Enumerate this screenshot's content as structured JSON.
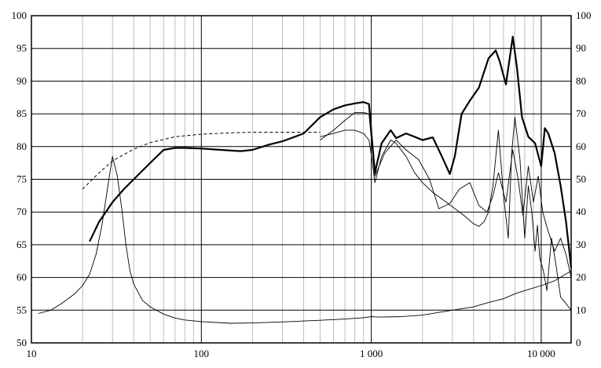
{
  "chart_data": {
    "type": "line",
    "title": "",
    "xlabel": "",
    "ylabel": "",
    "ylabel_right": "",
    "x_scale": "log",
    "xlim": [
      10,
      15000
    ],
    "ylim": [
      50,
      100
    ],
    "ylim_right": [
      0,
      100
    ],
    "grid": true,
    "legend": "none",
    "x_ticks": [
      {
        "value": 10,
        "label": "10"
      },
      {
        "value": 100,
        "label": "100"
      },
      {
        "value": 1000,
        "label": "1 000"
      },
      {
        "value": 10000,
        "label": "10 000"
      }
    ],
    "y_ticks": [
      50,
      55,
      60,
      65,
      70,
      75,
      80,
      85,
      90,
      95,
      100
    ],
    "y_ticks_right": [
      0,
      10,
      20,
      30,
      40,
      50,
      60,
      70,
      80,
      90,
      100
    ],
    "series": [
      {
        "axis": "left",
        "style": "thick",
        "color": "#000000",
        "x": [
          22,
          25,
          30,
          35,
          40,
          50,
          60,
          70,
          80,
          100,
          130,
          170,
          200,
          250,
          300,
          400,
          500,
          600,
          700,
          800,
          900,
          970,
          1010,
          1050,
          1150,
          1300,
          1400,
          1600,
          1800,
          2000,
          2300,
          2600,
          2900,
          3100,
          3400,
          3800,
          4300,
          4900,
          5400,
          5700,
          6200,
          6800,
          7200,
          7700,
          8400,
          9200,
          10000,
          10500,
          11000,
          12000,
          13000,
          14000,
          15000
        ],
        "y": [
          65.5,
          68.5,
          71.5,
          73.5,
          75,
          77.5,
          79.5,
          79.8,
          79.8,
          79.7,
          79.5,
          79.3,
          79.5,
          80.3,
          80.8,
          82,
          84.5,
          85.7,
          86.3,
          86.6,
          86.8,
          86.5,
          81,
          76,
          80.5,
          82.5,
          81.3,
          82,
          81.5,
          81,
          81.4,
          78.5,
          75.8,
          78.5,
          85,
          87,
          89,
          93.5,
          94.7,
          93,
          89.5,
          96.8,
          92,
          84.5,
          81.5,
          80.5,
          77,
          82.8,
          82,
          79,
          74,
          68.5,
          61.5
        ]
      },
      {
        "axis": "left",
        "style": "dashed",
        "color": "#000000",
        "x": [
          20,
          25,
          30,
          40,
          50,
          70,
          100,
          150,
          200,
          300,
          400,
          500
        ],
        "y": [
          73.5,
          76,
          77.8,
          79.6,
          80.6,
          81.5,
          81.9,
          82.1,
          82.2,
          82.2,
          82.2,
          82.2
        ]
      },
      {
        "axis": "left",
        "style": "thin",
        "color": "#000000",
        "x": [
          500,
          600,
          700,
          800,
          900,
          970,
          1010,
          1050,
          1200,
          1400,
          1600,
          1900,
          2200,
          2500,
          2900,
          3300,
          3800,
          4300,
          4800,
          5200,
          5600,
          6200,
          6800,
          7300,
          7800,
          8400,
          9000,
          9600,
          10200,
          11000,
          12000,
          13000,
          14000,
          15000
        ],
        "y": [
          81,
          82.5,
          84,
          85.2,
          85.2,
          85,
          80,
          75.5,
          79,
          81,
          79.5,
          78,
          75,
          70.5,
          71.3,
          73.5,
          74.5,
          71,
          70,
          72.5,
          76,
          71.5,
          79.5,
          75.2,
          69.5,
          77,
          71.5,
          75.5,
          70,
          67,
          64,
          66,
          63.5,
          60
        ]
      },
      {
        "axis": "left",
        "style": "thin",
        "color": "#000000",
        "x": [
          500,
          600,
          700,
          800,
          900,
          970,
          1010,
          1050,
          1150,
          1300,
          1400,
          1600,
          1800,
          2000,
          2300,
          2600,
          3000,
          3500,
          4000,
          4300,
          4600,
          4900,
          5200,
          5600,
          6000,
          6400,
          6700,
          7000,
          7500,
          8000,
          8400,
          8800,
          9200,
          9500,
          9800,
          10300,
          10800,
          11500,
          12200,
          13000,
          14000,
          15000
        ],
        "y": [
          81.5,
          82,
          82.5,
          82.5,
          82,
          81,
          78,
          74.5,
          78.5,
          81,
          80.5,
          78.5,
          76,
          74.5,
          73,
          72,
          70.8,
          69.5,
          68.2,
          67.8,
          68.5,
          70,
          74,
          82.5,
          72.5,
          66,
          79,
          84.5,
          78,
          66,
          74,
          70,
          64,
          68,
          63,
          61,
          58,
          66,
          62,
          57,
          56,
          55
        ]
      },
      {
        "axis": "right",
        "style": "thin",
        "color": "#000000",
        "x": [
          11,
          13,
          15,
          18,
          20,
          22,
          24,
          26,
          28,
          30,
          32,
          34,
          36,
          38,
          40,
          45,
          50,
          60,
          70,
          80,
          100,
          150,
          200,
          300,
          500,
          700,
          900,
          1000,
          1100,
          1500,
          2000,
          3000,
          4000,
          5000,
          6000,
          7000,
          8000,
          10000,
          12000,
          15000
        ],
        "y": [
          9,
          10,
          12,
          15,
          17.5,
          21,
          27,
          36,
          47,
          57,
          51,
          41,
          30,
          22,
          18,
          13,
          11,
          8.8,
          7.6,
          7,
          6.5,
          6,
          6.1,
          6.4,
          6.9,
          7.3,
          7.7,
          8,
          7.9,
          8,
          8.5,
          10,
          11,
          12.5,
          13.5,
          15,
          16,
          17.5,
          19,
          22
        ]
      }
    ]
  }
}
